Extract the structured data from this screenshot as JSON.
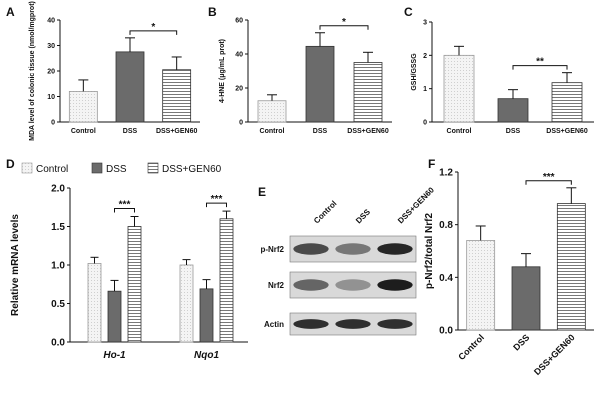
{
  "panels": {
    "A": "A",
    "B": "B",
    "C": "C",
    "D": "D",
    "E": "E",
    "F": "F"
  },
  "chart_data": [
    {
      "panel": "A",
      "type": "bar",
      "ylabel": "MDA level of colonic tissue (nmol/mgprot)",
      "ylim": [
        0,
        40
      ],
      "yticks": [
        "0",
        "10",
        "20",
        "30",
        "40"
      ],
      "categories": [
        "Control",
        "DSS",
        "DSS+GEN60"
      ],
      "values": [
        12,
        27.5,
        20.5
      ],
      "errors": [
        4.5,
        5.5,
        5
      ],
      "significance": [
        {
          "from": 1,
          "to": 2,
          "label": "*"
        }
      ]
    },
    {
      "panel": "B",
      "type": "bar",
      "ylabel": "4-HNE (μg/mL prot)",
      "ylim": [
        0,
        60
      ],
      "yticks": [
        "0",
        "20",
        "40",
        "60"
      ],
      "categories": [
        "Control",
        "DSS",
        "DSS+GEN60"
      ],
      "values": [
        12.5,
        44.5,
        35
      ],
      "errors": [
        3.5,
        8,
        6
      ],
      "significance": [
        {
          "from": 1,
          "to": 2,
          "label": "*"
        }
      ]
    },
    {
      "panel": "C",
      "type": "bar",
      "ylabel": "GSH/GSSG",
      "ylim": [
        0,
        3
      ],
      "yticks": [
        "0",
        "1",
        "2",
        "3"
      ],
      "categories": [
        "Control",
        "DSS",
        "DSS+GEN60"
      ],
      "values": [
        2.0,
        0.7,
        1.18
      ],
      "errors": [
        0.27,
        0.27,
        0.3
      ],
      "significance": [
        {
          "from": 1,
          "to": 2,
          "label": "**"
        }
      ]
    },
    {
      "panel": "D",
      "type": "bar",
      "ylabel": "Relative mRNA levels",
      "ylim": [
        0,
        2.0
      ],
      "yticks": [
        "0.0",
        "0.5",
        "1.0",
        "1.5",
        "2.0"
      ],
      "categories": [
        "Ho-1",
        "Nqo1"
      ],
      "series": [
        {
          "name": "Control",
          "values": [
            1.02,
            1.0
          ],
          "errors": [
            0.08,
            0.07
          ]
        },
        {
          "name": "DSS",
          "values": [
            0.66,
            0.69
          ],
          "errors": [
            0.14,
            0.12
          ]
        },
        {
          "name": "DSS+GEN60",
          "values": [
            1.5,
            1.6
          ],
          "errors": [
            0.13,
            0.1
          ]
        }
      ],
      "significance": [
        {
          "category": 0,
          "label": "***"
        },
        {
          "category": 1,
          "label": "***"
        }
      ]
    },
    {
      "panel": "F",
      "type": "bar",
      "ylabel": "p-Nrf2/total Nrf2",
      "ylim": [
        0,
        1.2
      ],
      "yticks": [
        "0.0",
        "0.4",
        "0.8",
        "1.2"
      ],
      "categories": [
        "Control",
        "DSS",
        "DSS+GEN60"
      ],
      "values": [
        0.68,
        0.48,
        0.96
      ],
      "errors": [
        0.11,
        0.1,
        0.12
      ],
      "significance": [
        {
          "from": 1,
          "to": 2,
          "label": "***"
        }
      ]
    }
  ],
  "western_blot": {
    "columns": [
      "Control",
      "DSS",
      "DSS+GEN60"
    ],
    "rows": [
      "p-Nrf2",
      "Nrf2",
      "Actin"
    ],
    "band_intensity": [
      [
        0.7,
        0.45,
        0.9
      ],
      [
        0.55,
        0.3,
        0.95
      ],
      [
        0.85,
        0.85,
        0.85
      ]
    ]
  }
}
